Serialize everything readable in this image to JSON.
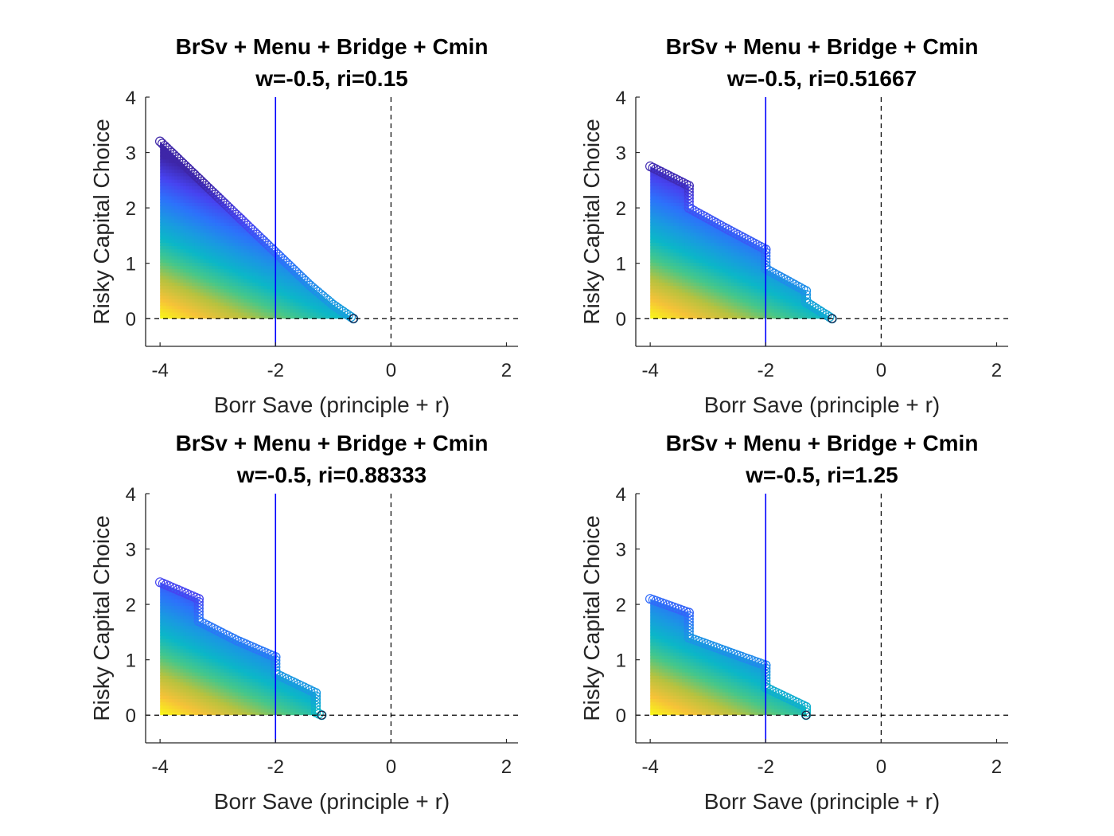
{
  "figure": {
    "colors": {
      "axis": "#262626",
      "vline": "#0000ff",
      "guide": "#000000"
    },
    "colormap": [
      "#3e26a8",
      "#4743f0",
      "#2d71fb",
      "#1a98e2",
      "#0bb7c7",
      "#46c78a",
      "#b7c23f",
      "#f6c238",
      "#f9fb15"
    ]
  },
  "chart_data": [
    {
      "type": "scatter",
      "title": "BrSv + Menu + Bridge + Cmin",
      "subtitle": "w=-0.5, ri=0.15",
      "xlabel": "Borr Save (principle + r)",
      "ylabel": "Risky Capital Choice",
      "xlim": [
        -4.25,
        2.2
      ],
      "ylim": [
        -0.5,
        4
      ],
      "xticks": [
        "-4",
        "-2",
        "0",
        "2"
      ],
      "yticks": [
        "0",
        "1",
        "2",
        "3",
        "4"
      ],
      "vline": -2,
      "dashed_x": 0,
      "dashed_y": 0,
      "frontier": [
        [
          -4,
          3.2
        ],
        [
          -3.4,
          2.6
        ],
        [
          -3.0,
          2.2
        ],
        [
          -2.6,
          1.8
        ],
        [
          -2.2,
          1.4
        ],
        [
          -1.8,
          1.0
        ],
        [
          -1.4,
          0.6
        ],
        [
          -1.0,
          0.25
        ],
        [
          -0.65,
          0
        ]
      ]
    },
    {
      "type": "scatter",
      "title": "BrSv + Menu + Bridge + Cmin",
      "subtitle": "w=-0.5, ri=0.51667",
      "xlabel": "Borr Save (principle + r)",
      "ylabel": "Risky Capital Choice",
      "xlim": [
        -4.25,
        2.2
      ],
      "ylim": [
        -0.5,
        4
      ],
      "xticks": [
        "-4",
        "-2",
        "0",
        "2"
      ],
      "yticks": [
        "0",
        "1",
        "2",
        "3",
        "4"
      ],
      "vline": -2,
      "dashed_x": 0,
      "dashed_y": 0,
      "frontier": [
        [
          -4,
          2.75
        ],
        [
          -3.33,
          2.4
        ],
        [
          -3.33,
          2.0
        ],
        [
          -2.67,
          1.62
        ],
        [
          -2.0,
          1.25
        ],
        [
          -2.0,
          0.9
        ],
        [
          -1.3,
          0.5
        ],
        [
          -1.3,
          0.3
        ],
        [
          -0.85,
          0
        ]
      ]
    },
    {
      "type": "scatter",
      "title": "BrSv + Menu + Bridge + Cmin",
      "subtitle": "w=-0.5, ri=0.88333",
      "xlabel": "Borr Save (principle + r)",
      "ylabel": "Risky Capital Choice",
      "xlim": [
        -4.25,
        2.2
      ],
      "ylim": [
        -0.5,
        4
      ],
      "xticks": [
        "-4",
        "-2",
        "0",
        "2"
      ],
      "yticks": [
        "0",
        "1",
        "2",
        "3",
        "4"
      ],
      "vline": -2,
      "dashed_x": 0,
      "dashed_y": 0,
      "frontier": [
        [
          -4,
          2.4
        ],
        [
          -3.33,
          2.1
        ],
        [
          -3.33,
          1.7
        ],
        [
          -2.67,
          1.35
        ],
        [
          -2.0,
          1.05
        ],
        [
          -2.0,
          0.75
        ],
        [
          -1.3,
          0.4
        ],
        [
          -1.3,
          0.05
        ],
        [
          -1.2,
          0
        ]
      ]
    },
    {
      "type": "scatter",
      "title": "BrSv + Menu + Bridge + Cmin",
      "subtitle": "w=-0.5, ri=1.25",
      "xlabel": "Borr Save (principle + r)",
      "ylabel": "Risky Capital Choice",
      "xlim": [
        -4.25,
        2.2
      ],
      "ylim": [
        -0.5,
        4
      ],
      "xticks": [
        "-4",
        "-2",
        "0",
        "2"
      ],
      "yticks": [
        "0",
        "1",
        "2",
        "3",
        "4"
      ],
      "vline": -2,
      "dashed_x": 0,
      "dashed_y": 0,
      "frontier": [
        [
          -4,
          2.1
        ],
        [
          -3.33,
          1.85
        ],
        [
          -3.33,
          1.4
        ],
        [
          -2.67,
          1.15
        ],
        [
          -2.0,
          0.9
        ],
        [
          -2.0,
          0.5
        ],
        [
          -1.3,
          0.15
        ],
        [
          -1.3,
          0
        ]
      ]
    }
  ]
}
